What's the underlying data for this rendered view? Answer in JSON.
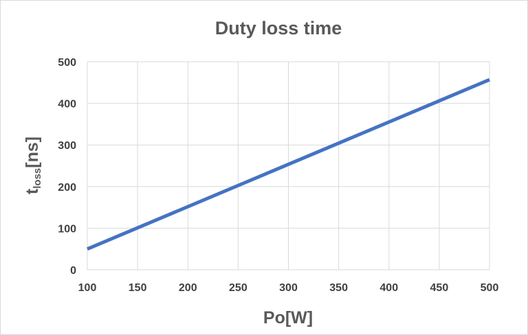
{
  "chart_data": {
    "type": "line",
    "title": "Duty loss time",
    "xlabel": "Po[W]",
    "ylabel_main": "t",
    "ylabel_sub": "loss",
    "ylabel_suffix": "[ns]",
    "xlim": [
      100,
      500
    ],
    "ylim": [
      0,
      500
    ],
    "xticks": [
      100,
      150,
      200,
      250,
      300,
      350,
      400,
      450,
      500
    ],
    "yticks": [
      0,
      100,
      200,
      300,
      400,
      500
    ],
    "grid": true,
    "series": [
      {
        "color": "#4472c4",
        "x": [
          100,
          500
        ],
        "y": [
          50,
          457
        ]
      }
    ]
  }
}
